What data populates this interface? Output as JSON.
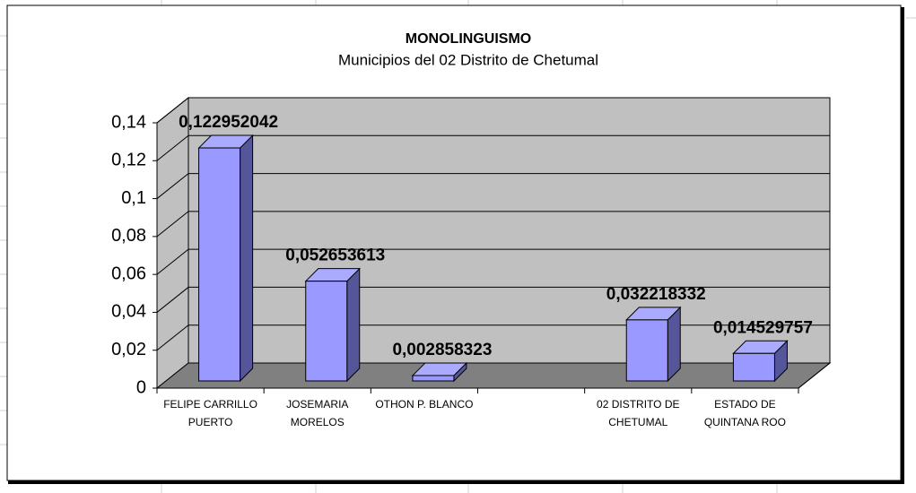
{
  "chart_data": {
    "type": "bar3d",
    "title": "MONOLINGUISMO",
    "subtitle": "Municipios del 02 Distrito de Chetumal",
    "categories": [
      "FELIPE CARRILLO PUERTO",
      "JOSEMARIA MORELOS",
      "OTHON P. BLANCO",
      null,
      "02 DISTRITO DE CHETUMAL",
      "ESTADO DE QUINTANA ROO"
    ],
    "values": [
      0.122952042,
      0.052653613,
      0.002858323,
      null,
      0.032218332,
      0.014529757
    ],
    "value_labels": [
      "0,122952042",
      "0,052653613",
      "0,002858323",
      null,
      "0,032218332",
      "0,014529757"
    ],
    "color": "#9999ff",
    "ylim": [
      0,
      0.14
    ],
    "yticks": [
      0,
      {
        "value": 0.02,
        "label": "0,02"
      },
      {
        "value": 0.04,
        "label": "0,04"
      },
      {
        "value": 0.06,
        "label": "0,06"
      },
      {
        "value": 0.08,
        "label": "0,08"
      },
      {
        "value": 0.1,
        "label": "0,1"
      },
      {
        "value": 0.12,
        "label": "0,12"
      },
      {
        "value": 0.14,
        "label": "0,14"
      }
    ],
    "grid": true
  }
}
